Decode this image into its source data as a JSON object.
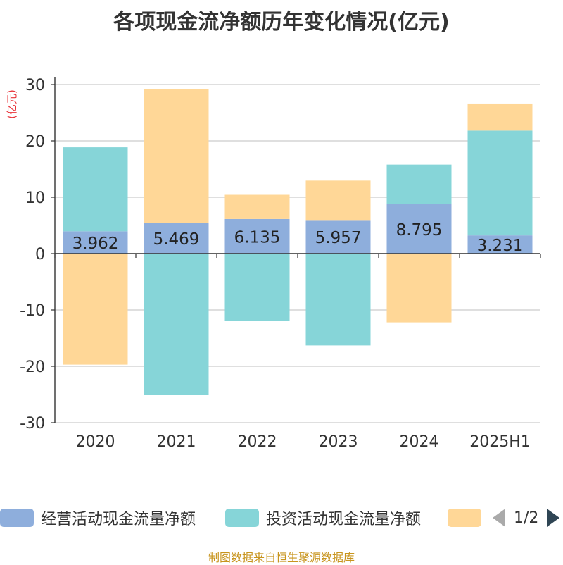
{
  "chart_data": {
    "type": "bar",
    "stacked": true,
    "title": "各项现金流净额历年变化情况(亿元)",
    "ylabel": "(亿元)",
    "ylim": [
      -30,
      30
    ],
    "yticks": [
      30,
      20,
      10,
      0,
      -10,
      -20,
      -30
    ],
    "grid": true,
    "categories": [
      "2020",
      "2021",
      "2022",
      "2023",
      "2024",
      "2025H1"
    ],
    "series": [
      {
        "name": "经营活动现金流量净额",
        "color": "#8eaedc",
        "values": [
          3.962,
          5.469,
          6.135,
          5.957,
          8.795,
          3.231
        ],
        "labels": [
          "3.962",
          "5.469",
          "6.135",
          "5.957",
          "8.795",
          "3.231"
        ]
      },
      {
        "name": "投资活动现金流量净额",
        "color": "#86d5d8",
        "values": [
          14.9,
          -25.1,
          -12.0,
          -16.3,
          7.0,
          18.6
        ]
      },
      {
        "name": "",
        "color": "#ffd797",
        "values": [
          -19.7,
          23.7,
          4.3,
          7.0,
          -12.2,
          4.8
        ]
      }
    ],
    "legend_position": "bottom"
  },
  "legend": {
    "items": [
      {
        "label": "经营活动现金流量净额",
        "color": "#8eaedc"
      },
      {
        "label": "投资活动现金流量净额",
        "color": "#86d5d8"
      },
      {
        "label": "",
        "color": "#ffd797"
      }
    ],
    "page_indicator": "1/2"
  },
  "footer": {
    "source": "制图数据来自恒生聚源数据库"
  }
}
